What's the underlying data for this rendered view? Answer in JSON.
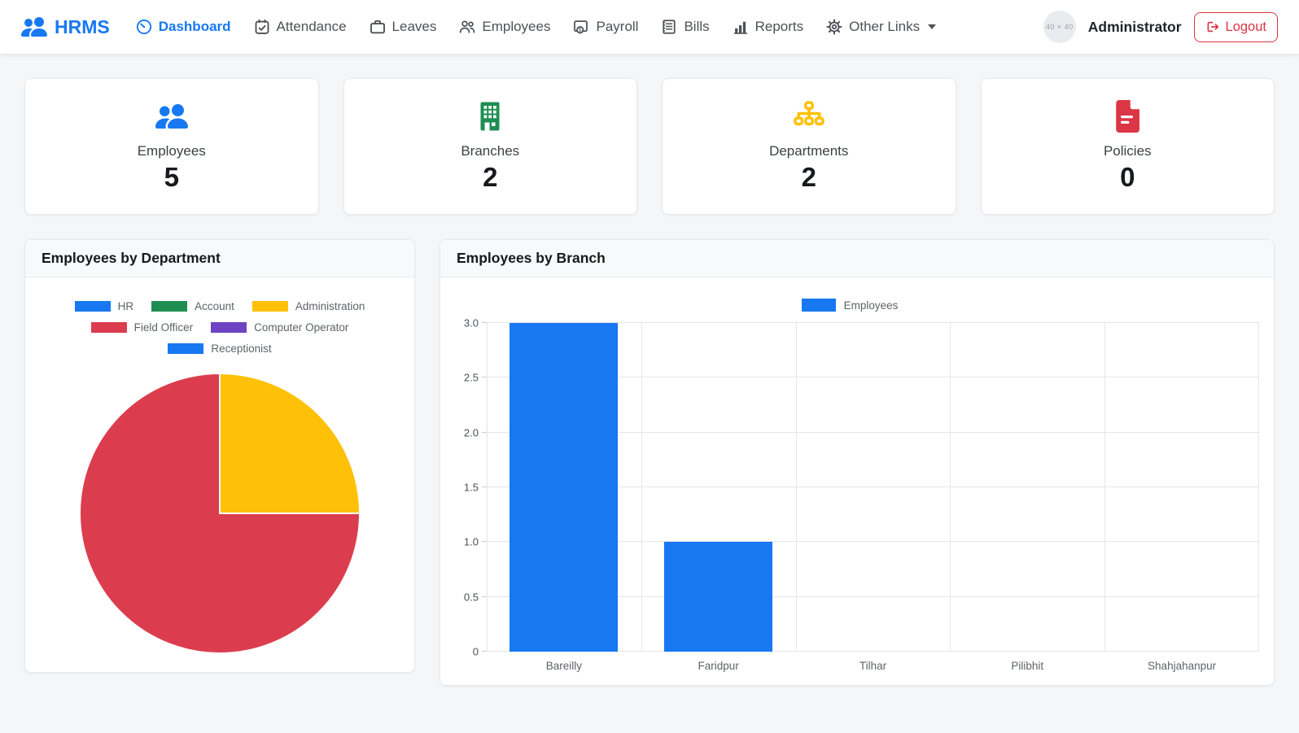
{
  "navbar": {
    "brand": "HRMS",
    "items": [
      {
        "label": "Dashboard",
        "active": true
      },
      {
        "label": "Attendance"
      },
      {
        "label": "Leaves"
      },
      {
        "label": "Employees"
      },
      {
        "label": "Payroll"
      },
      {
        "label": "Bills"
      },
      {
        "label": "Reports"
      },
      {
        "label": "Other Links"
      }
    ],
    "avatar_placeholder": "40 × 40",
    "user": "Administrator",
    "logout_label": "Logout"
  },
  "stats": [
    {
      "label": "Employees",
      "value": "5",
      "color": "#1778f2"
    },
    {
      "label": "Branches",
      "value": "2",
      "color": "#1e8e52"
    },
    {
      "label": "Departments",
      "value": "2",
      "color": "#ffc107"
    },
    {
      "label": "Policies",
      "value": "0",
      "color": "#dc3545"
    }
  ],
  "chart_data": [
    {
      "type": "pie",
      "title": "Employees by Department",
      "categories": [
        "HR",
        "Account",
        "Administration",
        "Field Officer",
        "Computer Operator",
        "Receptionist"
      ],
      "values": [
        0,
        0,
        1,
        3,
        0,
        0
      ],
      "colors": [
        "#1778f2",
        "#1e8e52",
        "#ffc107",
        "#dc3d4e",
        "#6f42c1",
        "#1778f2"
      ],
      "legend_position": "top",
      "start_angle_deg": -90,
      "direction": "clockwise"
    },
    {
      "type": "bar",
      "title": "Employees by Branch",
      "categories": [
        "Bareilly",
        "Faridpur",
        "Tilhar",
        "Pilibhit",
        "Shahjahanpur"
      ],
      "series": [
        {
          "name": "Employees",
          "color": "#1778f2",
          "values": [
            3,
            1,
            0,
            0,
            0
          ]
        }
      ],
      "ylim": [
        0,
        3
      ],
      "yticks": [
        0,
        0.5,
        1.0,
        1.5,
        2.0,
        2.5,
        3.0
      ],
      "grid": true,
      "legend_position": "top"
    }
  ]
}
